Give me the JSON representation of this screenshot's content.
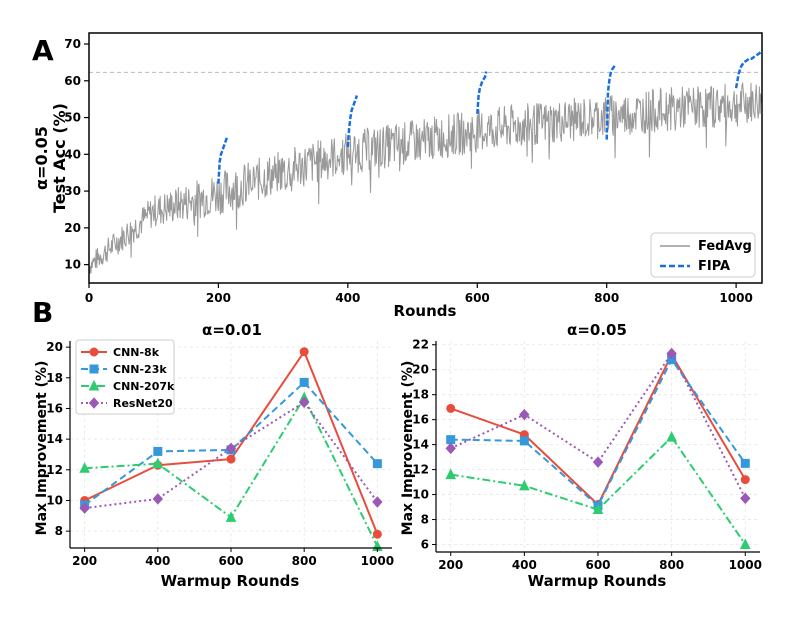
{
  "figure": {
    "panel_labels": [
      "A",
      "B"
    ]
  },
  "chart_data": [
    {
      "id": "panelA",
      "type": "line",
      "xlabel": "Rounds",
      "ylabel_line1": "α=0.05",
      "ylabel_line2": "Test Acc (%)",
      "xlim": [
        0,
        1040
      ],
      "ylim": [
        5,
        73
      ],
      "xticks": [
        0,
        200,
        400,
        600,
        800,
        1000
      ],
      "yticks": [
        10,
        20,
        30,
        40,
        50,
        60,
        70
      ],
      "reference_line": {
        "y": 62.3,
        "style": "dashed",
        "color": "#bbbbbb"
      },
      "legend": {
        "position": "bottom-right",
        "entries": [
          "FedAvg",
          "FIPA"
        ]
      },
      "series": [
        {
          "name": "FedAvg",
          "color": "#999999",
          "style": "solid",
          "trend_points": [
            [
              0,
              10
            ],
            [
              100,
              25
            ],
            [
              200,
              30
            ],
            [
              300,
              36
            ],
            [
              400,
              41
            ],
            [
              500,
              44
            ],
            [
              600,
              47
            ],
            [
              700,
              49
            ],
            [
              800,
              51
            ],
            [
              900,
              53
            ],
            [
              1000,
              54
            ],
            [
              1040,
              55
            ]
          ],
          "noise_amplitude": 6,
          "n_points": 1040
        },
        {
          "name": "FIPA",
          "color": "#1a6fe0",
          "style": "dashed",
          "segments": [
            {
              "start": 200,
              "x": [
                200,
                202,
                204,
                206,
                208,
                210,
                212,
                214
              ],
              "y": [
                32,
                38,
                40,
                41,
                42,
                43,
                44,
                45
              ]
            },
            {
              "start": 400,
              "x": [
                400,
                402,
                404,
                406,
                408,
                410,
                412,
                414
              ],
              "y": [
                42,
                47,
                50,
                52,
                53,
                54,
                55,
                56
              ]
            },
            {
              "start": 600,
              "x": [
                600,
                602,
                604,
                606,
                608,
                610,
                612,
                614
              ],
              "y": [
                51,
                56,
                58,
                59,
                60,
                60.5,
                61,
                62.5
              ]
            },
            {
              "start": 800,
              "x": [
                800,
                802,
                804,
                806,
                808,
                810,
                812,
                814
              ],
              "y": [
                44,
                57,
                60,
                62,
                63,
                63.5,
                64,
                64.5
              ]
            },
            {
              "start": 1000,
              "x": [
                1000,
                1004,
                1008,
                1012,
                1016,
                1020,
                1024,
                1028,
                1032,
                1036,
                1040
              ],
              "y": [
                58,
                62,
                64,
                65,
                65.5,
                66,
                66,
                66.5,
                67,
                67.5,
                68
              ]
            }
          ]
        }
      ]
    },
    {
      "id": "panelB1",
      "type": "line",
      "title": "α=0.01",
      "xlabel": "Warmup Rounds",
      "ylabel": "Max Improvement (%)",
      "categories": [
        200,
        400,
        600,
        800,
        1000
      ],
      "xticks": [
        200,
        400,
        600,
        800,
        1000
      ],
      "yticks": [
        8,
        10,
        12,
        14,
        16,
        18,
        20
      ],
      "ylim": [
        6.9,
        20.4
      ],
      "grid": true,
      "legend": {
        "position": "top-left"
      },
      "series": [
        {
          "name": "CNN-8k",
          "color": "#e74c3c",
          "style": "solid",
          "marker": "circle",
          "values": [
            10.0,
            12.3,
            12.7,
            19.7,
            7.8
          ]
        },
        {
          "name": "CNN-23k",
          "color": "#3498db",
          "style": "dashed",
          "marker": "square",
          "values": [
            9.7,
            13.2,
            13.3,
            17.7,
            12.4
          ]
        },
        {
          "name": "CNN-207k",
          "color": "#2ecc71",
          "style": "dashdot",
          "marker": "triangle",
          "values": [
            12.1,
            12.4,
            8.9,
            16.7,
            7.0
          ]
        },
        {
          "name": "ResNet20",
          "color": "#9b59b6",
          "style": "dotted",
          "marker": "diamond",
          "values": [
            9.5,
            10.1,
            13.4,
            16.4,
            9.9
          ]
        }
      ]
    },
    {
      "id": "panelB2",
      "type": "line",
      "title": "α=0.05",
      "xlabel": "Warmup Rounds",
      "ylabel": "Max Improvement (%)",
      "categories": [
        200,
        400,
        600,
        800,
        1000
      ],
      "xticks": [
        200,
        400,
        600,
        800,
        1000
      ],
      "yticks": [
        6,
        8,
        10,
        12,
        14,
        16,
        18,
        20,
        22
      ],
      "ylim": [
        5.4,
        22.3
      ],
      "grid": true,
      "series": [
        {
          "name": "CNN-8k",
          "color": "#e74c3c",
          "style": "solid",
          "marker": "circle",
          "values": [
            16.9,
            14.8,
            9.2,
            21.2,
            11.2
          ]
        },
        {
          "name": "CNN-23k",
          "color": "#3498db",
          "style": "dashed",
          "marker": "square",
          "values": [
            14.4,
            14.3,
            9.1,
            20.8,
            12.5
          ]
        },
        {
          "name": "CNN-207k",
          "color": "#2ecc71",
          "style": "dashdot",
          "marker": "triangle",
          "values": [
            11.6,
            10.7,
            8.8,
            14.6,
            6.0
          ]
        },
        {
          "name": "ResNet20",
          "color": "#9b59b6",
          "style": "dotted",
          "marker": "diamond",
          "values": [
            13.7,
            16.4,
            12.6,
            21.3,
            9.7
          ]
        }
      ]
    }
  ]
}
